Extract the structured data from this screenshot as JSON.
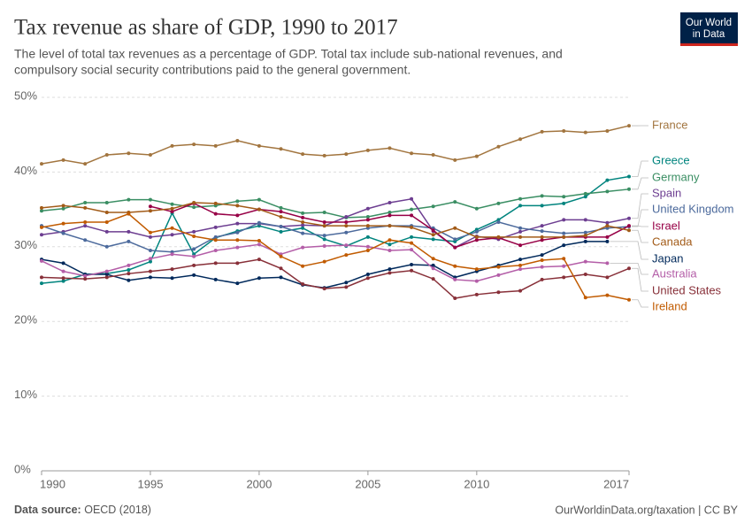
{
  "chart_data": {
    "type": "line",
    "title": "Tax revenue as share of GDP, 1990 to 2017",
    "subtitle": [
      "The level of total tax revenues as a percentage of GDP. Total tax include sub-national revenues, and",
      "compulsory social security contributions paid to the general government."
    ],
    "logo": [
      "Our World",
      "in Data"
    ],
    "source_label": "Data source:",
    "source": "OECD (2018)",
    "url": "OurWorldinData.org/taxation | CC BY",
    "x": [
      1990,
      1991,
      1992,
      1993,
      1994,
      1995,
      1996,
      1997,
      1998,
      1999,
      2000,
      2001,
      2002,
      2003,
      2004,
      2005,
      2006,
      2007,
      2008,
      2009,
      2010,
      2011,
      2012,
      2013,
      2014,
      2015,
      2016,
      2017
    ],
    "xlim": [
      1990,
      2017
    ],
    "xticks": [
      1990,
      1995,
      2000,
      2005,
      2010,
      2017
    ],
    "ylim": [
      0,
      50
    ],
    "yticks": [
      {
        "value": 0,
        "label": "0%"
      },
      {
        "value": 10,
        "label": "10%"
      },
      {
        "value": 20,
        "label": "20%"
      },
      {
        "value": 30,
        "label": "30%"
      },
      {
        "value": 40,
        "label": "40%"
      },
      {
        "value": 50,
        "label": "50%"
      }
    ],
    "grid": true,
    "series": [
      {
        "name": "France",
        "color": "#a2753f",
        "values": [
          41.1,
          41.6,
          41.1,
          42.3,
          42.5,
          42.3,
          43.5,
          43.7,
          43.5,
          44.2,
          43.5,
          43.1,
          42.4,
          42.2,
          42.4,
          42.9,
          43.2,
          42.5,
          42.3,
          41.6,
          42.1,
          43.4,
          44.4,
          45.4,
          45.5,
          45.3,
          45.5,
          46.2
        ]
      },
      {
        "name": "Greece",
        "color": "#00847e",
        "values": [
          25.1,
          25.4,
          26.3,
          26.4,
          26.9,
          28.0,
          34.5,
          29.0,
          31.2,
          32.1,
          32.8,
          32.0,
          32.5,
          31.0,
          30.1,
          31.3,
          30.3,
          31.3,
          31.0,
          30.7,
          32.3,
          33.6,
          35.5,
          35.5,
          35.8,
          36.7,
          38.9,
          39.4
        ]
      },
      {
        "name": "Germany",
        "color": "#3a8e63",
        "values": [
          34.8,
          35.1,
          35.9,
          35.9,
          36.3,
          36.3,
          35.7,
          35.3,
          35.5,
          36.1,
          36.3,
          35.2,
          34.5,
          34.6,
          33.9,
          34.0,
          34.6,
          35.0,
          35.4,
          36.0,
          35.1,
          35.8,
          36.4,
          36.8,
          36.7,
          37.1,
          37.4,
          37.7
        ]
      },
      {
        "name": "Spain",
        "color": "#6d3e91",
        "values": [
          31.6,
          32.0,
          32.8,
          32.0,
          32.0,
          31.3,
          31.6,
          32.0,
          32.6,
          33.1,
          33.1,
          32.7,
          32.9,
          32.8,
          34.0,
          35.1,
          35.9,
          36.4,
          32.1,
          29.9,
          31.4,
          31.0,
          32.0,
          32.8,
          33.6,
          33.6,
          33.2,
          33.8
        ]
      },
      {
        "name": "United Kingdom",
        "color": "#4c6a9c",
        "values": [
          32.8,
          31.8,
          30.9,
          30.0,
          30.7,
          29.5,
          29.3,
          29.7,
          31.3,
          31.9,
          33.2,
          32.7,
          31.8,
          31.5,
          31.9,
          32.5,
          32.8,
          32.8,
          32.5,
          31.0,
          32.0,
          33.3,
          32.5,
          32.1,
          31.8,
          31.9,
          32.5,
          32.7
        ]
      },
      {
        "name": "Israel",
        "color": "#970046",
        "values": [
          null,
          null,
          null,
          null,
          null,
          35.4,
          34.7,
          35.8,
          34.4,
          34.2,
          35.0,
          34.7,
          33.9,
          33.3,
          33.3,
          33.6,
          34.2,
          34.2,
          32.2,
          29.9,
          30.9,
          31.2,
          30.2,
          30.9,
          31.3,
          31.3,
          31.3,
          32.8
        ]
      },
      {
        "name": "Canada",
        "color": "#a25b18",
        "values": [
          35.2,
          35.5,
          35.2,
          34.6,
          34.6,
          34.8,
          35.1,
          35.9,
          35.8,
          35.5,
          35.0,
          34.0,
          33.3,
          32.8,
          32.8,
          32.8,
          32.8,
          32.6,
          31.6,
          32.5,
          31.3,
          31.3,
          31.3,
          31.3,
          31.3,
          31.5,
          32.8,
          32.2
        ]
      },
      {
        "name": "Japan",
        "color": "#00295b",
        "values": [
          28.3,
          27.8,
          26.3,
          26.3,
          25.5,
          25.9,
          25.8,
          26.2,
          25.6,
          25.1,
          25.8,
          25.9,
          24.9,
          24.5,
          25.2,
          26.3,
          27.0,
          27.6,
          27.5,
          25.9,
          26.7,
          27.5,
          28.3,
          28.9,
          30.2,
          30.7,
          30.7,
          null
        ]
      },
      {
        "name": "Australia",
        "color": "#b45ea8",
        "values": [
          28.1,
          26.7,
          26.1,
          26.7,
          27.5,
          28.4,
          29.0,
          28.7,
          29.5,
          29.9,
          30.3,
          29.0,
          29.9,
          30.1,
          30.2,
          30.0,
          29.5,
          29.6,
          27.1,
          25.6,
          25.4,
          26.2,
          27.0,
          27.3,
          27.4,
          28.0,
          27.8,
          null
        ]
      },
      {
        "name": "United States",
        "color": "#883039",
        "values": [
          25.9,
          25.8,
          25.7,
          25.9,
          26.4,
          26.7,
          27.0,
          27.5,
          27.8,
          27.8,
          28.3,
          27.1,
          25.0,
          24.4,
          24.6,
          25.8,
          26.5,
          26.8,
          25.7,
          23.1,
          23.6,
          23.9,
          24.1,
          25.6,
          25.9,
          26.3,
          25.9,
          27.1
        ]
      },
      {
        "name": "Ireland",
        "color": "#c15b00",
        "values": [
          32.6,
          33.1,
          33.3,
          33.3,
          34.4,
          31.9,
          32.5,
          31.4,
          30.9,
          30.9,
          30.8,
          28.7,
          27.4,
          28.0,
          28.9,
          29.5,
          30.9,
          30.5,
          28.4,
          27.4,
          27.0,
          27.3,
          27.5,
          28.2,
          28.4,
          23.2,
          23.5,
          22.9
        ]
      }
    ]
  }
}
